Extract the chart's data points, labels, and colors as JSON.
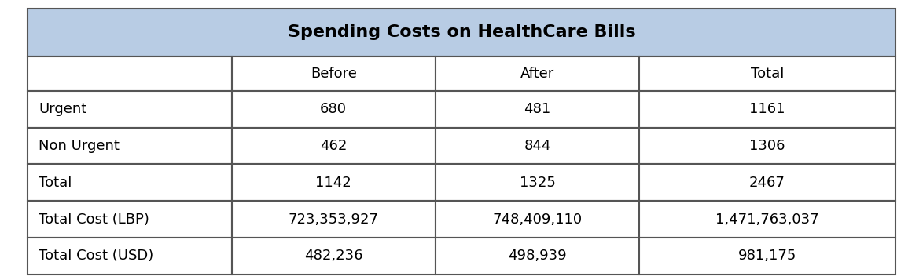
{
  "title": "Spending Costs on HealthCare Bills",
  "title_bg_color": "#b8cce4",
  "header_row": [
    "",
    "Before",
    "After",
    "Total"
  ],
  "rows": [
    [
      "Urgent",
      "680",
      "481",
      "1161"
    ],
    [
      "Non Urgent",
      "462",
      "844",
      "1306"
    ],
    [
      "Total",
      "1142",
      "1325",
      "2467"
    ],
    [
      "Total Cost (LBP)",
      "723,353,927",
      "748,409,110",
      "1,471,763,037"
    ],
    [
      "Total Cost (USD)",
      "482,236",
      "498,939",
      "981,175"
    ]
  ],
  "border_color": "#555555",
  "title_bg_color_hex": "#b8cce4",
  "white": "#ffffff",
  "title_font_size": 16,
  "header_font_size": 13,
  "cell_font_size": 13,
  "text_color": "#000000",
  "fig_width": 11.74,
  "fig_height": 3.57,
  "dpi": 100
}
